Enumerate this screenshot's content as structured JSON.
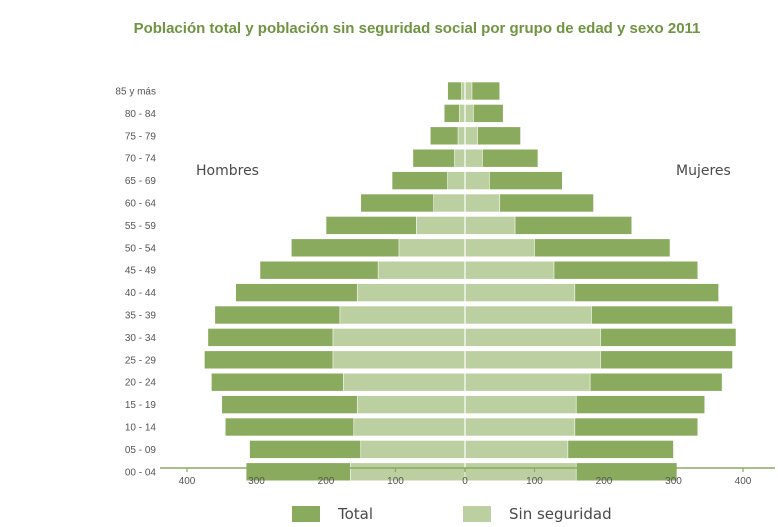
{
  "chart_data": {
    "type": "bar",
    "title": "Población total y población sin seguridad social por grupo de edad y sexo 2011",
    "side_labels": {
      "left": "Hombres",
      "right": "Mujeres"
    },
    "categories": [
      "85 y más",
      "80 - 84",
      "75 - 79",
      "70 - 74",
      "65 - 69",
      "60 - 64",
      "55 - 59",
      "50 - 54",
      "45 - 49",
      "40 - 44",
      "35 - 39",
      "30 - 34",
      "25 - 29",
      "20 - 24",
      "15 - 19",
      "10 - 14",
      "05 - 09",
      "00 - 04"
    ],
    "series": [
      {
        "name": "Total",
        "color": "#8aab5e",
        "hombres": [
          25,
          30,
          50,
          75,
          105,
          150,
          200,
          250,
          295,
          330,
          360,
          370,
          375,
          365,
          350,
          345,
          310,
          315
        ],
        "mujeres": [
          50,
          55,
          80,
          105,
          140,
          185,
          240,
          295,
          335,
          365,
          385,
          390,
          385,
          370,
          345,
          335,
          300,
          305
        ]
      },
      {
        "name": "Sin seguridad",
        "color": "#bccfa1",
        "hombres": [
          5,
          8,
          10,
          15,
          25,
          45,
          70,
          95,
          125,
          155,
          180,
          190,
          190,
          175,
          155,
          160,
          150,
          165
        ],
        "mujeres": [
          10,
          12,
          18,
          25,
          35,
          50,
          72,
          100,
          128,
          158,
          182,
          195,
          195,
          180,
          160,
          158,
          148,
          160
        ]
      }
    ],
    "x_ticks": [
      "400",
      "300",
      "200",
      "100",
      "0",
      "100",
      "200",
      "300",
      "400"
    ],
    "xlim": [
      -400,
      400
    ],
    "grid": false,
    "legend_position": "bottom"
  }
}
